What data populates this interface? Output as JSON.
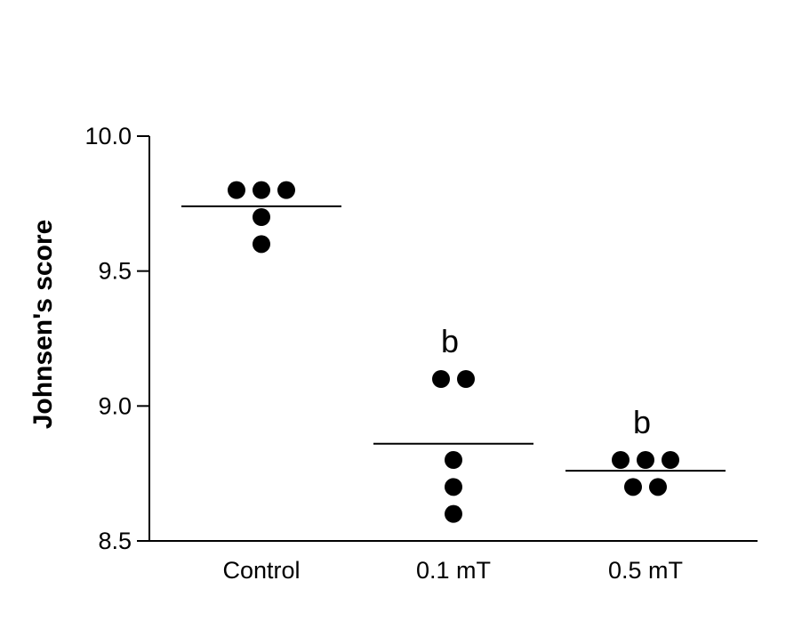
{
  "chart_data": {
    "type": "scatter",
    "title": "",
    "xlabel": "",
    "ylabel": "Johnsen's score",
    "ylim": [
      8.5,
      10.0
    ],
    "yticks": [
      8.5,
      9.0,
      9.5,
      10.0
    ],
    "ytick_labels": [
      "8.5",
      "9.0",
      "9.5",
      "10.0"
    ],
    "categories": [
      "Control",
      "0.1 mT",
      "0.5 mT"
    ],
    "grid": false,
    "legend": "none",
    "point_color": "#000000",
    "groups": [
      {
        "category": "Control",
        "points": [
          9.8,
          9.8,
          9.8,
          9.7,
          9.6
        ],
        "mean": 9.74,
        "annotation": ""
      },
      {
        "category": "0.1 mT",
        "points": [
          9.1,
          9.1,
          8.8,
          8.7,
          8.6
        ],
        "mean": 8.86,
        "annotation": "b"
      },
      {
        "category": "0.5 mT",
        "points": [
          8.8,
          8.8,
          8.8,
          8.7,
          8.7
        ],
        "mean": 8.76,
        "annotation": "b"
      }
    ]
  }
}
